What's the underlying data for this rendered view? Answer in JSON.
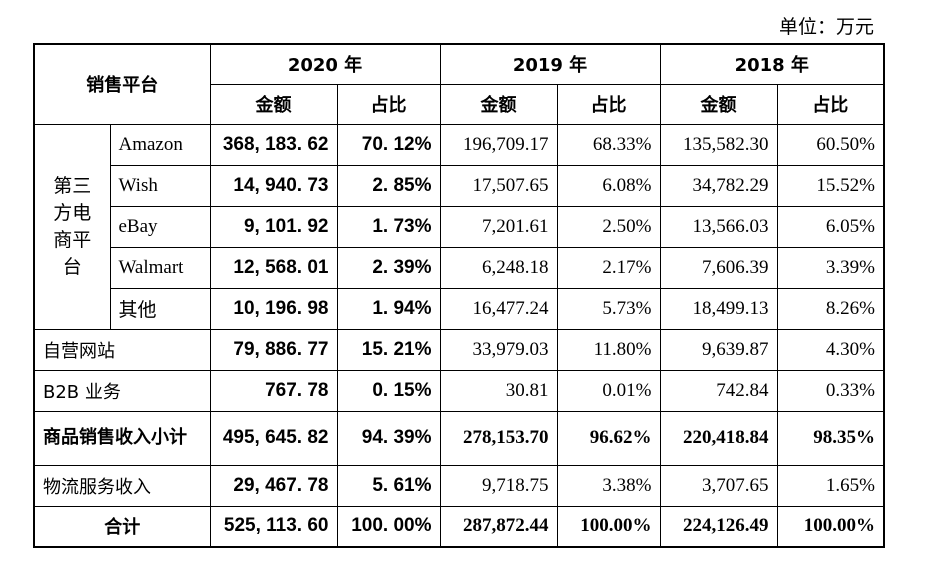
{
  "unit": "单位：万元",
  "header": {
    "platform": "销售平台",
    "years": [
      "2020 年",
      "2019 年",
      "2018 年"
    ],
    "amount": "金额",
    "ratio": "占比"
  },
  "group_label": "第三方电商平台",
  "rows": [
    {
      "label": "Amazon",
      "group": true,
      "v": [
        "368, 183. 62",
        "70. 12%",
        "196,709.17",
        "68.33%",
        "135,582.30",
        "60.50%"
      ]
    },
    {
      "label": "Wish",
      "group": true,
      "v": [
        "14, 940. 73",
        "2. 85%",
        "17,507.65",
        "6.08%",
        "34,782.29",
        "15.52%"
      ]
    },
    {
      "label": "eBay",
      "group": true,
      "v": [
        "9, 101. 92",
        "1. 73%",
        "7,201.61",
        "2.50%",
        "13,566.03",
        "6.05%"
      ]
    },
    {
      "label": "Walmart",
      "group": true,
      "v": [
        "12, 568. 01",
        "2. 39%",
        "6,248.18",
        "2.17%",
        "7,606.39",
        "3.39%"
      ]
    },
    {
      "label": "其他",
      "group": true,
      "v": [
        "10, 196. 98",
        "1. 94%",
        "16,477.24",
        "5.73%",
        "18,499.13",
        "8.26%"
      ]
    },
    {
      "label": "自营网站",
      "v": [
        "79, 886. 77",
        "15. 21%",
        "33,979.03",
        "11.80%",
        "9,639.87",
        "4.30%"
      ]
    },
    {
      "label": "B2B 业务",
      "v": [
        "767. 78",
        "0. 15%",
        "30.81",
        "0.01%",
        "742.84",
        "0.33%"
      ]
    },
    {
      "label": "商品销售收入小计",
      "bold": true,
      "tall": true,
      "v": [
        "495, 645. 82",
        "94. 39%",
        "278,153.70",
        "96.62%",
        "220,418.84",
        "98.35%"
      ]
    },
    {
      "label": "物流服务收入",
      "v": [
        "29, 467. 78",
        "5. 61%",
        "9,718.75",
        "3.38%",
        "3,707.65",
        "1.65%"
      ]
    },
    {
      "label": "合计",
      "bold": true,
      "center": true,
      "v": [
        "525, 113. 60",
        "100. 00%",
        "287,872.44",
        "100.00%",
        "224,126.49",
        "100.00%"
      ]
    }
  ]
}
